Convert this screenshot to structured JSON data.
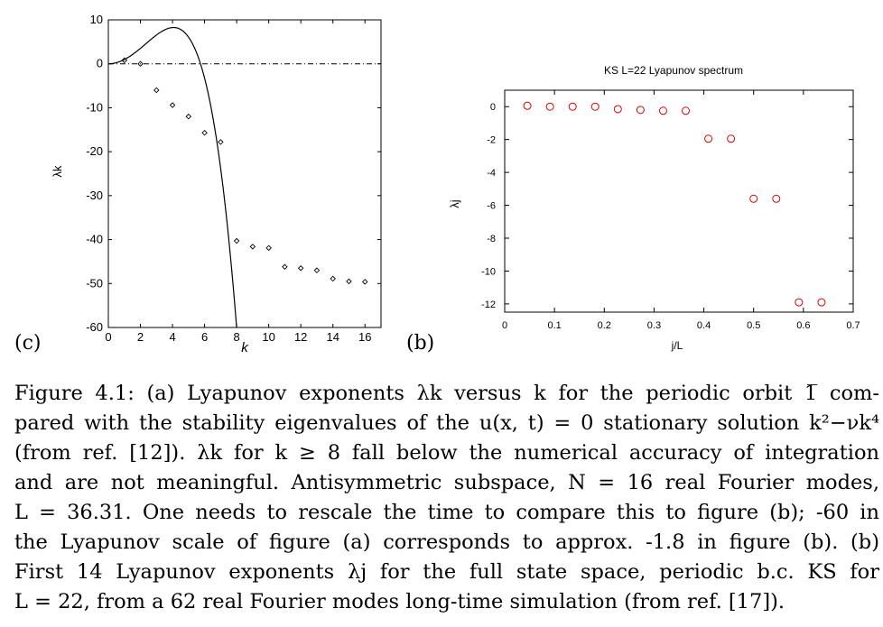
{
  "figure_c": {
    "panel_tag": "(c)",
    "chart_data": {
      "type": "scatter",
      "xlabel": "k",
      "ylabel": "λk",
      "xlim": [
        0,
        17
      ],
      "ylim": [
        -60,
        10
      ],
      "xticks": [
        "0",
        "2",
        "4",
        "6",
        "8",
        "10",
        "12",
        "14",
        "16"
      ],
      "yticks": [
        "10",
        "0",
        "-10",
        "-20",
        "-30",
        "-40",
        "-50",
        "-60"
      ],
      "reference_line": {
        "y": 0,
        "style": "dash-dot"
      },
      "curve": {
        "formula": "k^2 - nu k^4",
        "nu": 0.0303
      },
      "points": {
        "x": [
          1,
          2,
          3,
          4,
          5,
          6,
          7,
          8,
          9,
          10,
          11,
          12,
          13,
          14,
          15,
          16
        ],
        "y": [
          0.8,
          0,
          -6,
          -9.4,
          -12,
          -15.7,
          -17.8,
          -40.3,
          -41.6,
          -41.9,
          -46.2,
          -46.5,
          -47,
          -48.9,
          -49.5,
          -49.6
        ]
      },
      "marker_color": "#000000"
    }
  },
  "figure_b": {
    "panel_tag": "(b)",
    "chart_data": {
      "type": "scatter",
      "title": "KS L=22 Lyapunov spectrum",
      "xlabel": "j/L",
      "ylabel": "λj",
      "xlim": [
        0,
        0.7
      ],
      "ylim": [
        -12.5,
        1
      ],
      "xticks": [
        "0",
        "0.1",
        "0.2",
        "0.3",
        "0.4",
        "0.5",
        "0.6",
        "0.7"
      ],
      "yticks": [
        "0",
        "-2",
        "-4",
        "-6",
        "-8",
        "-10",
        "-12"
      ],
      "points": {
        "x": [
          0.0455,
          0.0909,
          0.1364,
          0.1818,
          0.2273,
          0.2727,
          0.3182,
          0.3636,
          0.4091,
          0.4545,
          0.5,
          0.5455,
          0.5909,
          0.6364
        ],
        "y": [
          0.05,
          0.0,
          0.0,
          0.0,
          -0.15,
          -0.2,
          -0.25,
          -0.25,
          -1.95,
          -1.95,
          -5.6,
          -5.6,
          -11.9,
          -11.9
        ]
      },
      "marker_color": "#e00000"
    }
  },
  "caption": {
    "lines": [
      "Figure 4.1:  (a) Lyapunov exponents λk versus k for the periodic orbit 1̅ com-",
      "pared with the stability eigenvalues of the u(x, t) = 0 stationary solution k²−νk⁴",
      "(from ref. [12]).  λk for k ≥ 8 fall below the numerical accuracy of integration",
      "and are not meaningful. Antisymmetric subspace, N = 16 real Fourier modes,",
      "L = 36.31. One needs to rescale the time to compare this to figure (b); -60 in",
      "the Lyapunov scale of figure (a) corresponds to approx. -1.8 in figure (b). (b)",
      "First 14 Lyapunov exponents λj for the full state space, periodic b.c.  KS for",
      "L = 22, from a 62 real Fourier modes long-time simulation (from ref. [17])."
    ],
    "refs": [
      "12",
      "17"
    ]
  }
}
